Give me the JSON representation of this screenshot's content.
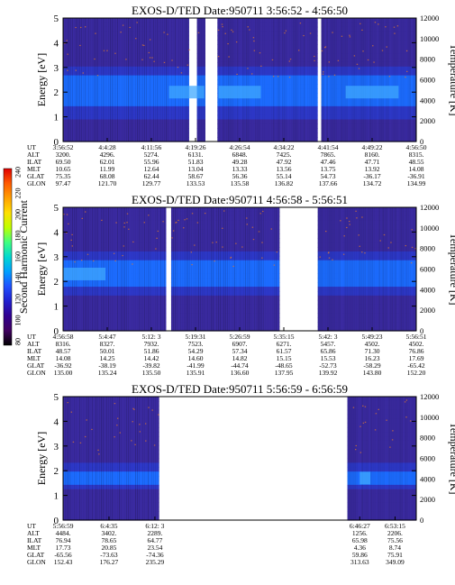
{
  "colors": {
    "background_low": "#3a2aa0",
    "background_mid": "#2d38c8",
    "band": "#1c6cff",
    "band_bright": "#3fa8ff",
    "noise_dot": "#e07a30",
    "gap": "#ffffff"
  },
  "colorbar": {
    "label": "Second Harmonic Current",
    "ticks": [
      "240",
      "220",
      "200",
      "180",
      "160",
      "140",
      "120",
      "100",
      "80"
    ],
    "colors": [
      "#e00000",
      "#ff5a00",
      "#ffa000",
      "#ffe000",
      "#bfff00",
      "#40ff80",
      "#00d8d0",
      "#00a0ff",
      "#2050ff",
      "#2020d0",
      "#300090",
      "#400060",
      "#000000"
    ]
  },
  "panels": [
    {
      "title": "EXOS-D/TED   Date:950711  3:56:52 - 4:56:50",
      "ylabel": "Energy [eV]",
      "y2label": "Temperature [K]",
      "yticks": [
        "0",
        "1",
        "2",
        "3",
        "4",
        "5"
      ],
      "y2ticks": [
        "0",
        "2000",
        "4000",
        "6000",
        "8000",
        "10000",
        "12000"
      ],
      "band_center": 2.0,
      "band_strength": 0.85,
      "data_segments": [
        [
          0,
          0.357
        ],
        [
          0.379,
          0.403
        ],
        [
          0.437,
          0.721
        ],
        [
          0.731,
          1.0
        ]
      ],
      "bright_segments": [
        [
          0.3,
          0.4
        ],
        [
          0.44,
          0.56
        ],
        [
          0.8,
          0.95
        ]
      ],
      "eph_labels": [
        "UT",
        "ALT",
        "ILAT",
        "MLT",
        "GLAT",
        "GLON"
      ],
      "eph_cols": [
        [
          "3:56:52",
          "3200.",
          "69.50",
          "10.65",
          "75.35",
          "97.47"
        ],
        [
          "4:4:28",
          "4296.",
          "62.01",
          "11.99",
          "68.08",
          "121.70"
        ],
        [
          "4:11:56",
          "5274.",
          "55.96",
          "12.64",
          "62.44",
          "129.77"
        ],
        [
          "4:19:26",
          "6131.",
          "51.83",
          "13.04",
          "58.67",
          "133.53"
        ],
        [
          "4:26:54",
          "6848.",
          "49.28",
          "13.33",
          "56.36",
          "135.58"
        ],
        [
          "4:34:22",
          "7425.",
          "47.92",
          "13.56",
          "55.14",
          "136.82"
        ],
        [
          "4:41:54",
          "7865.",
          "47.46",
          "13.75",
          "54.73",
          "137.66"
        ],
        [
          "4:49:22",
          "8160.",
          "47.71",
          "13.92",
          "-36.17",
          "134.72"
        ],
        [
          "4:56:50",
          "8315.",
          "48.55",
          "14.08",
          "-36.91",
          "134.99"
        ]
      ]
    },
    {
      "title": "EXOS-D/TED   Date:950711  4:56:58 - 5:56:51",
      "ylabel": "Energy [eV]",
      "y2label": "Temperature [K]",
      "yticks": [
        "0",
        "1",
        "2",
        "3",
        "4",
        "5"
      ],
      "y2ticks": [
        "0",
        "2000",
        "4000",
        "6000",
        "8000",
        "10000",
        "12000"
      ],
      "band_center": 2.3,
      "band_strength": 0.7,
      "data_segments": [
        [
          0,
          0.292
        ],
        [
          0.306,
          0.613
        ],
        [
          0.721,
          1.0
        ]
      ],
      "bright_segments": [
        [
          0.0,
          0.12
        ]
      ],
      "eph_labels": [
        "UT",
        "ALT",
        "ILAT",
        "MLT",
        "GLAT",
        "GLON"
      ],
      "eph_cols": [
        [
          "4:56:58",
          "8316.",
          "48.57",
          "14.08",
          "-36.92",
          "135.00"
        ],
        [
          "5:4:47",
          "8327.",
          "50.01",
          "14.25",
          "-38.19",
          "135.24"
        ],
        [
          "5:12: 3",
          "7932.",
          "51.86",
          "14.42",
          "-39.82",
          "135.50"
        ],
        [
          "5:19:31",
          "7523.",
          "54.29",
          "14.60",
          "-41.99",
          "135.91"
        ],
        [
          "5:26:59",
          "6907.",
          "57.34",
          "14.82",
          "-44.74",
          "136.60"
        ],
        [
          "5:35:15",
          "6271.",
          "61.57",
          "15.15",
          "-48.65",
          "137.95"
        ],
        [
          "5:42: 3",
          "5457.",
          "65.86",
          "15.53",
          "-52.73",
          "139.92"
        ],
        [
          "5:49:23",
          "4502.",
          "71.30",
          "16.23",
          "-58.29",
          "143.80"
        ],
        [
          "5:56:51",
          "4502.",
          "76.86",
          "17.69",
          "-65.42",
          "152.20"
        ]
      ]
    },
    {
      "title": "EXOS-D/TED   Date:950711  5:56:59 - 6:56:59",
      "ylabel": "Energy [eV]",
      "y2label": "Temperature [K]",
      "yticks": [
        "0",
        "1",
        "2",
        "3",
        "4",
        "5"
      ],
      "y2ticks": [
        "0",
        "2000",
        "4000",
        "6000",
        "8000",
        "10000",
        "12000"
      ],
      "band_center": 1.7,
      "band_strength": 0.3,
      "data_segments": [
        [
          0,
          0.272
        ],
        [
          0.805,
          1.0
        ]
      ],
      "bright_segments": [
        [
          0.84,
          0.87
        ]
      ],
      "eph_labels": [
        "UT",
        "ALT",
        "ILAT",
        "MLT",
        "GLAT",
        "GLON"
      ],
      "eph_cols": [
        [
          "5:56:59",
          "4484.",
          "76.94",
          "17.73",
          "-65.56",
          "152.43"
        ],
        [
          "6:4:35",
          "3402.",
          "78.65",
          "20.85",
          "-73.63",
          "176.27"
        ],
        [
          "6:12: 3",
          "2289.",
          "64.77",
          "23.54",
          "-74.36",
          "235.29"
        ],
        [
          "6:46:27",
          "1256.",
          "65.98",
          "4.36",
          "59.86",
          "313.63"
        ],
        [
          "6:53:15",
          "2206.",
          "75.56",
          "8.74",
          "75.91",
          "349.09"
        ]
      ]
    }
  ]
}
